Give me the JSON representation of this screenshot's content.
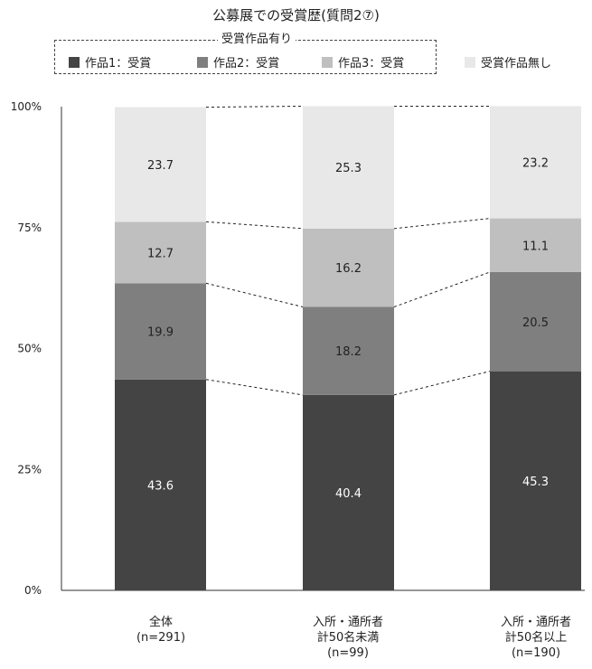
{
  "title": "公募展での受賞歴(質問2⑦)",
  "legend": {
    "group_label": "受賞作品有り",
    "items": [
      {
        "label": "作品1：受賞",
        "color": "#444444"
      },
      {
        "label": "作品2：受賞",
        "color": "#7f7f7f"
      },
      {
        "label": "作品3：受賞",
        "color": "#bfbfbf"
      },
      {
        "label": "受賞作品無し",
        "color": "#e8e8e8"
      }
    ]
  },
  "chart_data": {
    "type": "bar",
    "stacked": true,
    "percent": true,
    "title": "公募展での受賞歴(質問2⑦)",
    "categories": [
      {
        "line1": "全体",
        "line2": "(n=291)",
        "line3": ""
      },
      {
        "line1": "入所・通所者",
        "line2": "計50名未満",
        "line3": "(n=99)"
      },
      {
        "line1": "入所・通所者",
        "line2": "計50名以上",
        "line3": "(n=190)"
      }
    ],
    "series": [
      {
        "name": "作品1：受賞",
        "color": "#444444",
        "label_color": "#ffffff",
        "values": [
          43.6,
          40.4,
          45.3
        ]
      },
      {
        "name": "作品2：受賞",
        "color": "#7f7f7f",
        "label_color": "#222222",
        "values": [
          19.9,
          18.2,
          20.5
        ]
      },
      {
        "name": "作品3：受賞",
        "color": "#bfbfbf",
        "label_color": "#222222",
        "values": [
          12.7,
          16.2,
          11.1
        ]
      },
      {
        "name": "受賞作品無し",
        "color": "#e8e8e8",
        "label_color": "#222222",
        "values": [
          23.7,
          25.3,
          23.2
        ]
      }
    ],
    "yticks": [
      "0%",
      "25%",
      "50%",
      "75%",
      "100%"
    ],
    "ylim": [
      0,
      100
    ],
    "connector_lines": true,
    "grid": false
  }
}
